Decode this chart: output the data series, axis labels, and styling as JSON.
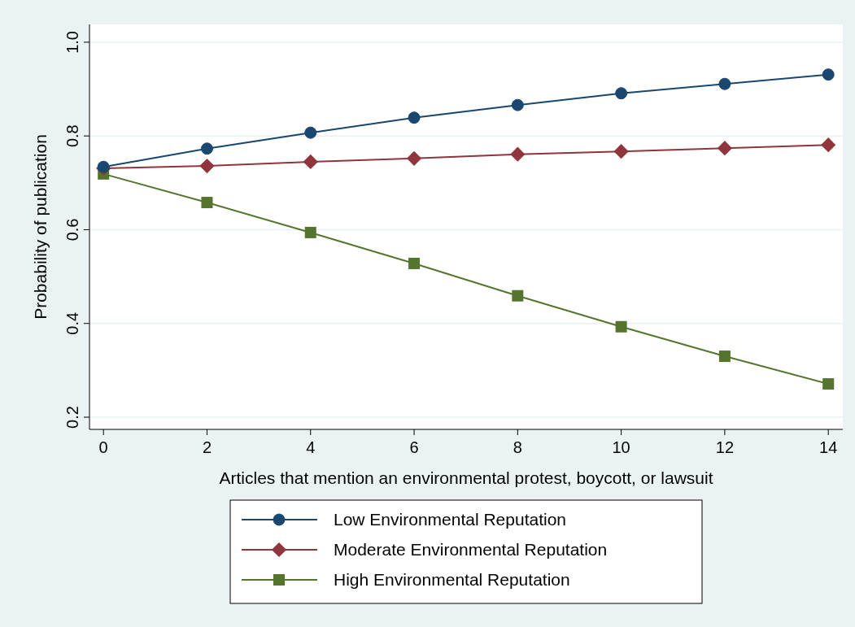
{
  "chart_data": {
    "type": "line",
    "xlabel": "Articles that mention an environmental protest, boycott, or lawsuit",
    "ylabel": "Probability of publication",
    "x": [
      0,
      2,
      4,
      6,
      8,
      10,
      12,
      14
    ],
    "series": [
      {
        "name": "Low Environmental Reputation",
        "color": "#1a476f",
        "marker": "circle",
        "values": [
          0.734,
          0.773,
          0.807,
          0.839,
          0.866,
          0.891,
          0.911,
          0.931
        ]
      },
      {
        "name": "Moderate Environmental Reputation",
        "color": "#90353b",
        "marker": "diamond",
        "values": [
          0.731,
          0.736,
          0.745,
          0.752,
          0.761,
          0.767,
          0.774,
          0.781
        ]
      },
      {
        "name": "High Environmental Reputation",
        "color": "#55752f",
        "marker": "square",
        "values": [
          0.719,
          0.658,
          0.594,
          0.528,
          0.459,
          0.393,
          0.33,
          0.271
        ]
      }
    ],
    "xlim": [
      -0.27,
      14.28
    ],
    "xticks": [
      0,
      2,
      4,
      6,
      8,
      10,
      12,
      14
    ],
    "ylim": [
      0.174,
      1.038
    ],
    "yticks": [
      {
        "value": 0.2,
        "label": "0.2"
      },
      {
        "value": 0.4,
        "label": "0.4"
      },
      {
        "value": 0.6,
        "label": "0.6"
      },
      {
        "value": 0.8,
        "label": "0.8"
      },
      {
        "value": 1.0,
        "label": "1.0"
      }
    ],
    "grid": "y",
    "legend": "bottom"
  }
}
